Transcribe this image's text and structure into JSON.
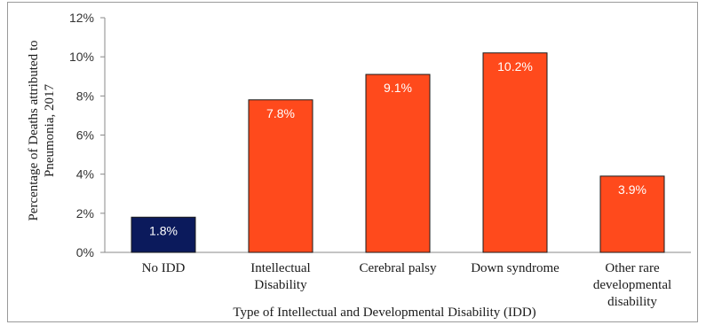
{
  "chart_data": {
    "type": "bar",
    "categories": [
      [
        "No IDD"
      ],
      [
        "Intellectual",
        "Disability"
      ],
      [
        "Cerebral palsy"
      ],
      [
        "Down syndrome"
      ],
      [
        "Other rare",
        "developmental",
        "disability"
      ]
    ],
    "values": [
      1.8,
      7.8,
      9.1,
      10.2,
      3.9
    ],
    "data_labels": [
      "1.8%",
      "7.8%",
      "9.1%",
      "10.2%",
      "3.9%"
    ],
    "bar_colors": [
      "#0b1a5c",
      "#ff4a1c",
      "#ff4a1c",
      "#ff4a1c",
      "#ff4a1c"
    ],
    "xlabel": "Type of Intellectual and Developmental Disability (IDD)",
    "ylabel": [
      "Percentage of Deaths attributed to",
      "Pneumonia, 2017"
    ],
    "ylim": [
      0,
      12
    ],
    "yticks": [
      0,
      2,
      4,
      6,
      8,
      10,
      12
    ],
    "ytick_labels": [
      "0%",
      "2%",
      "4%",
      "6%",
      "8%",
      "10%",
      "12%"
    ],
    "grid": false,
    "legend": "none"
  }
}
